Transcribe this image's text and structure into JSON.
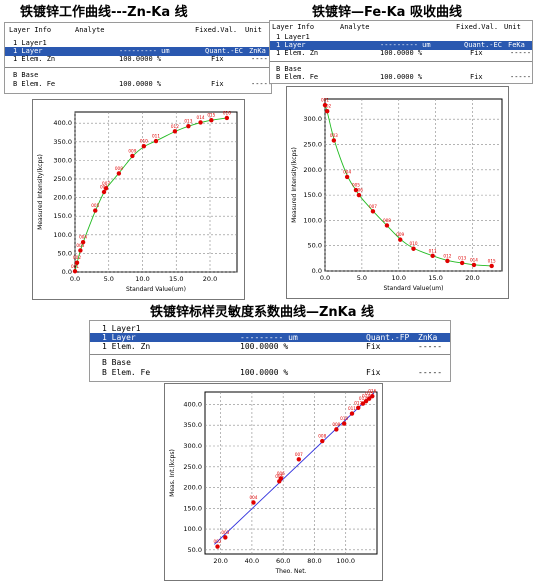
{
  "headings": {
    "h1": "铁镀锌工作曲线---Zn-Ka 线",
    "h2": "铁镀锌—Fe-Ka 吸收曲线",
    "h3": "铁镀锌标样灵敏度系数曲线—ZnKa 线"
  },
  "panels": [
    {
      "header": {
        "c1": "Layer  Info",
        "c2": "Analyte",
        "c3": "Fixed.Val.",
        "c4": "Unit"
      },
      "layer": "1 Layer1",
      "selected": {
        "c1": "1 Layer",
        "c2": "--------- um",
        "c3": "Quant.-EC",
        "c4": "ZnKa"
      },
      "elem1": {
        "c1": "1 Elem. Zn",
        "c2": "100.0000 %",
        "c3": "Fix",
        "c4": "-----"
      },
      "base": "B Base",
      "elem2": {
        "c1": "B Elem. Fe",
        "c2": "100.0000 %",
        "c3": "Fix",
        "c4": "-----"
      }
    },
    {
      "header": {
        "c1": "Layer  Info",
        "c2": "Analyte",
        "c3": "Fixed.Val.",
        "c4": "Unit"
      },
      "layer": "1 Layer1",
      "selected": {
        "c1": "1 Layer",
        "c2": "--------- um",
        "c3": "Quant.-EC",
        "c4": "FeKa"
      },
      "elem1": {
        "c1": "1 Elem. Zn",
        "c2": "100.0000 %",
        "c3": "Fix",
        "c4": "-----"
      },
      "base": "B Base",
      "elem2": {
        "c1": "B Elem. Fe",
        "c2": "100.0000 %",
        "c3": "Fix",
        "c4": "-----"
      }
    },
    {
      "header": {
        "c1": "",
        "c2": "",
        "c3": "",
        "c4": ""
      },
      "layer": "1 Layer1",
      "selected": {
        "c1": "1 Layer",
        "c2": "--------- um",
        "c3": "Quant.-FP",
        "c4": "ZnKa"
      },
      "elem1": {
        "c1": "1 Elem. Zn",
        "c2": "100.0000 %",
        "c3": "Fix",
        "c4": "-----"
      },
      "base": "B Base",
      "elem2": {
        "c1": "B Elem. Fe",
        "c2": "100.0000 %",
        "c3": "Fix",
        "c4": "-----"
      }
    }
  ],
  "chart_data": [
    {
      "type": "scatter",
      "title": "铁镀锌工作曲线---Zn-Ka 线",
      "xlabel": "Standard Value(um)",
      "ylabel": "Measured Intensity(kcps)",
      "xlim": [
        0,
        24
      ],
      "ylim": [
        0,
        430
      ],
      "xticks": [
        "0.0",
        "5.0",
        "10.0",
        "15.0",
        "20.0"
      ],
      "yticks": [
        "0.0",
        "50.0",
        "100.0",
        "150.0",
        "200.0",
        "250.0",
        "300.0",
        "350.0",
        "400.0"
      ],
      "xtick_values": [
        0,
        5,
        10,
        15,
        20
      ],
      "ytick_values": [
        0,
        50,
        100,
        150,
        200,
        250,
        300,
        350,
        400
      ],
      "grid": true,
      "fit": "curve",
      "colors": {
        "points": "#e00000",
        "fit": "#22bb22"
      },
      "points": [
        {
          "x": 0.0,
          "y": 2,
          "label": "001"
        },
        {
          "x": 0.3,
          "y": 25,
          "label": "002"
        },
        {
          "x": 0.8,
          "y": 58,
          "label": "003"
        },
        {
          "x": 1.2,
          "y": 80,
          "label": "004"
        },
        {
          "x": 3.0,
          "y": 165,
          "label": "005"
        },
        {
          "x": 4.3,
          "y": 215,
          "label": "006"
        },
        {
          "x": 4.6,
          "y": 225,
          "label": "007"
        },
        {
          "x": 6.5,
          "y": 265,
          "label": "008"
        },
        {
          "x": 8.5,
          "y": 312,
          "label": "009"
        },
        {
          "x": 10.2,
          "y": 338,
          "label": "010"
        },
        {
          "x": 12.0,
          "y": 352,
          "label": "011"
        },
        {
          "x": 14.8,
          "y": 378,
          "label": "012"
        },
        {
          "x": 16.8,
          "y": 392,
          "label": "013"
        },
        {
          "x": 18.6,
          "y": 402,
          "label": "014"
        },
        {
          "x": 20.2,
          "y": 408,
          "label": "015"
        },
        {
          "x": 22.5,
          "y": 414,
          "label": "016"
        }
      ]
    },
    {
      "type": "scatter",
      "title": "铁镀锌—Fe-Ka 吸收曲线",
      "xlabel": "Standard Value(um)",
      "ylabel": "Measured Intensity(kcps)",
      "xlim": [
        0,
        24
      ],
      "ylim": [
        0,
        340
      ],
      "xticks": [
        "0.0",
        "5.0",
        "10.0",
        "15.0",
        "20.0"
      ],
      "yticks": [
        "0.0",
        "50.0",
        "100.0",
        "150.0",
        "200.0",
        "250.0",
        "300.0"
      ],
      "xtick_values": [
        0,
        5,
        10,
        15,
        20
      ],
      "ytick_values": [
        0,
        50,
        100,
        150,
        200,
        250,
        300
      ],
      "grid": true,
      "fit": "curve",
      "colors": {
        "points": "#e00000",
        "fit": "#22bb22"
      },
      "points": [
        {
          "x": 0.0,
          "y": 328,
          "label": "001"
        },
        {
          "x": 0.3,
          "y": 316,
          "label": "002"
        },
        {
          "x": 1.2,
          "y": 258,
          "label": "003"
        },
        {
          "x": 3.0,
          "y": 186,
          "label": "004"
        },
        {
          "x": 4.2,
          "y": 160,
          "label": "005"
        },
        {
          "x": 4.6,
          "y": 150,
          "label": "006"
        },
        {
          "x": 6.5,
          "y": 118,
          "label": "007"
        },
        {
          "x": 8.4,
          "y": 90,
          "label": "008"
        },
        {
          "x": 10.2,
          "y": 62,
          "label": "009"
        },
        {
          "x": 12.0,
          "y": 44,
          "label": "010"
        },
        {
          "x": 14.6,
          "y": 30,
          "label": "011"
        },
        {
          "x": 16.6,
          "y": 20,
          "label": "012"
        },
        {
          "x": 18.6,
          "y": 16,
          "label": "013"
        },
        {
          "x": 20.2,
          "y": 12,
          "label": "014"
        },
        {
          "x": 22.6,
          "y": 10,
          "label": "015"
        }
      ]
    },
    {
      "type": "scatter",
      "title": "铁镀锌标样灵敏度系数曲线—ZnKa 线",
      "xlabel": "Theo. Net.",
      "ylabel": "Meas. Int.(kcps)",
      "xlim": [
        10,
        120
      ],
      "ylim": [
        40,
        430
      ],
      "xticks": [
        "20.0",
        "40.0",
        "60.0",
        "80.0",
        "100.0"
      ],
      "yticks": [
        "50.0",
        "100.0",
        "150.0",
        "200.0",
        "250.0",
        "300.0",
        "350.0",
        "400.0"
      ],
      "xtick_values": [
        20,
        40,
        60,
        80,
        100
      ],
      "ytick_values": [
        50,
        100,
        150,
        200,
        250,
        300,
        350,
        400
      ],
      "grid": true,
      "fit": "line",
      "colors": {
        "points": "#e00000",
        "fit": "#3333dd"
      },
      "points": [
        {
          "x": 18.0,
          "y": 58,
          "label": "002"
        },
        {
          "x": 23.0,
          "y": 80,
          "label": "003"
        },
        {
          "x": 41.0,
          "y": 164,
          "label": "004"
        },
        {
          "x": 57.5,
          "y": 215,
          "label": "005"
        },
        {
          "x": 58.5,
          "y": 222,
          "label": "006"
        },
        {
          "x": 70.0,
          "y": 268,
          "label": "007"
        },
        {
          "x": 85.0,
          "y": 312,
          "label": "008"
        },
        {
          "x": 94.0,
          "y": 340,
          "label": "009"
        },
        {
          "x": 99.0,
          "y": 354,
          "label": "010"
        },
        {
          "x": 104.0,
          "y": 378,
          "label": "011"
        },
        {
          "x": 108.0,
          "y": 392,
          "label": "012"
        },
        {
          "x": 111.0,
          "y": 402,
          "label": "013"
        },
        {
          "x": 113.0,
          "y": 408,
          "label": "014"
        },
        {
          "x": 115.0,
          "y": 414,
          "label": "015"
        },
        {
          "x": 117.0,
          "y": 420,
          "label": "016"
        }
      ]
    }
  ]
}
